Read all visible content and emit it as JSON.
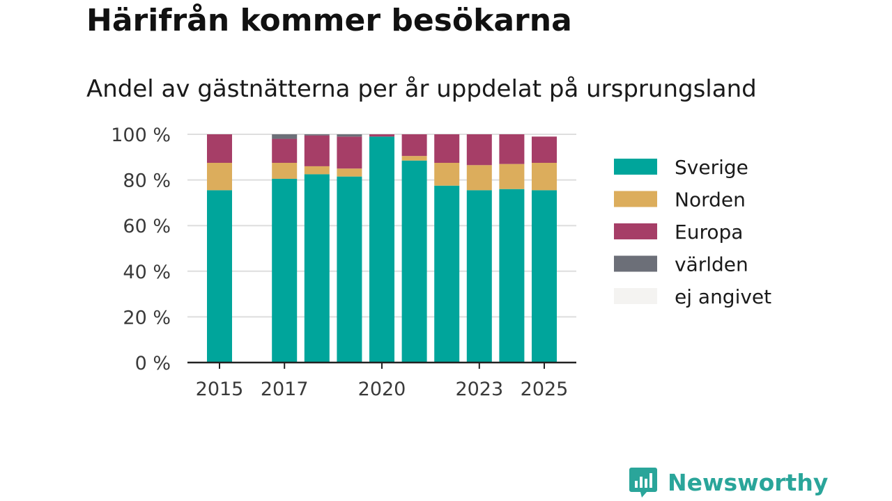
{
  "header": {
    "title": "Härifrån kommer besökarna",
    "subtitle": "Andel av gästnätterna per år uppdelat på ursprungsland"
  },
  "brand": {
    "name": "Newsworthy",
    "color": "#2aa59a"
  },
  "chart_data": {
    "type": "bar",
    "stacked": true,
    "categories": [
      2015,
      2016,
      2017,
      2018,
      2019,
      2020,
      2021,
      2022,
      2023,
      2024,
      2025
    ],
    "x_tick_labels": [
      "2015",
      "2017",
      "2020",
      "2023",
      "2025"
    ],
    "y_tick_labels": [
      "0 %",
      "20 %",
      "40 %",
      "60 %",
      "80 %",
      "100 %"
    ],
    "ylim": [
      0,
      100
    ],
    "grid": true,
    "legend_position": "right",
    "series": [
      {
        "name": "Sverige",
        "color": "#00a59b",
        "values": [
          75.5,
          null,
          80.5,
          82.5,
          81.5,
          99,
          88.5,
          77.5,
          75.5,
          76,
          75.5
        ]
      },
      {
        "name": "Norden",
        "color": "#dcad5c",
        "values": [
          12,
          null,
          7,
          3.5,
          3.5,
          0,
          2,
          10,
          11,
          11,
          12
        ]
      },
      {
        "name": "Europa",
        "color": "#a63e67",
        "values": [
          12.5,
          null,
          10.5,
          13.5,
          14,
          1,
          9.5,
          12.5,
          13.5,
          13,
          11.5
        ]
      },
      {
        "name": "världen",
        "color": "#6c6f78",
        "values": [
          0,
          null,
          2,
          0.5,
          1,
          0,
          0,
          0,
          0,
          0,
          0
        ]
      },
      {
        "name": "ej angivet",
        "color": "#f4f3f1",
        "values": [
          0,
          null,
          0,
          0,
          0,
          0,
          0,
          0,
          0,
          0,
          0
        ]
      }
    ]
  }
}
